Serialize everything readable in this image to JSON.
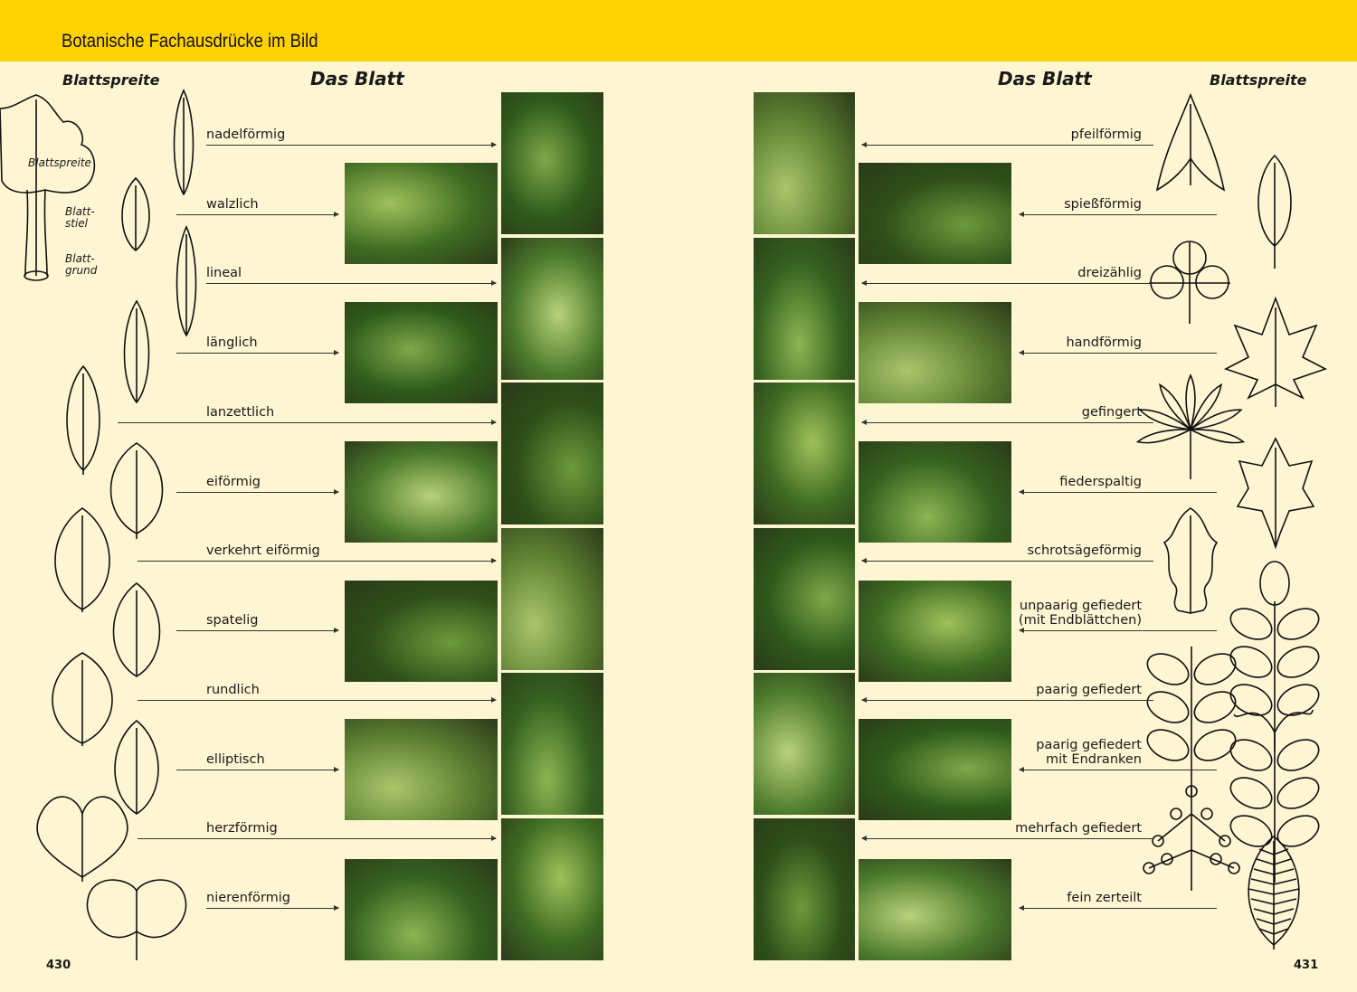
{
  "header": {
    "title": "Botanische Fachausdrücke im Bild",
    "accent": "#ffd200",
    "background": "#fef5d3"
  },
  "left": {
    "section_title": "Das Blatt",
    "subtitle": "Blattspreite",
    "diagram": {
      "blade": "Blattspreite",
      "stalk": "Blatt-\nstiel",
      "base": "Blatt-\ngrund"
    },
    "rows": [
      "nadelförmig",
      "walzlich",
      "lineal",
      "länglich",
      "lanzettlich",
      "eiförmig",
      "verkehrt eiförmig",
      "spatelig",
      "rundlich",
      "elliptisch",
      "herzförmig",
      "nierenförmig"
    ],
    "page_number": "430"
  },
  "right": {
    "section_title": "Das Blatt",
    "subtitle": "Blattspreite",
    "rows": [
      "pfeilförmig",
      "spießförmig",
      "dreizählig",
      "handförmig",
      "gefingert",
      "fiederspaltig",
      "schrotsägeförmig",
      "unpaarig gefiedert\n(mit Endblättchen)",
      "paarig gefiedert",
      "paarig gefiedert\nmit Endranken",
      "mehrfach gefiedert",
      "fein zerteilt"
    ],
    "page_number": "431"
  }
}
